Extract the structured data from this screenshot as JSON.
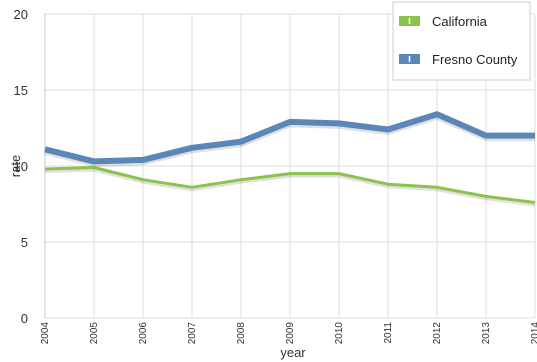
{
  "chart_data": {
    "type": "line",
    "title": "",
    "xlabel": "year",
    "ylabel": "rate",
    "categories": [
      "2004",
      "2005",
      "2006",
      "2007",
      "2008",
      "2009",
      "2010",
      "2011",
      "2012",
      "2013",
      "2014"
    ],
    "series": [
      {
        "name": "California",
        "color": "#8bc34a",
        "values": [
          9.8,
          9.9,
          9.1,
          8.6,
          9.1,
          9.5,
          9.5,
          8.8,
          8.6,
          8.0,
          7.6
        ]
      },
      {
        "name": "Fresno County",
        "color": "#5b86b8",
        "values": [
          11.1,
          10.3,
          10.4,
          11.2,
          11.6,
          12.9,
          12.8,
          12.4,
          13.4,
          12.0,
          12.0
        ]
      }
    ],
    "yticks": [
      "0",
      "5",
      "10",
      "15",
      "20"
    ],
    "ylim": [
      0,
      20
    ],
    "grid": true,
    "legend_position": "top-right"
  }
}
